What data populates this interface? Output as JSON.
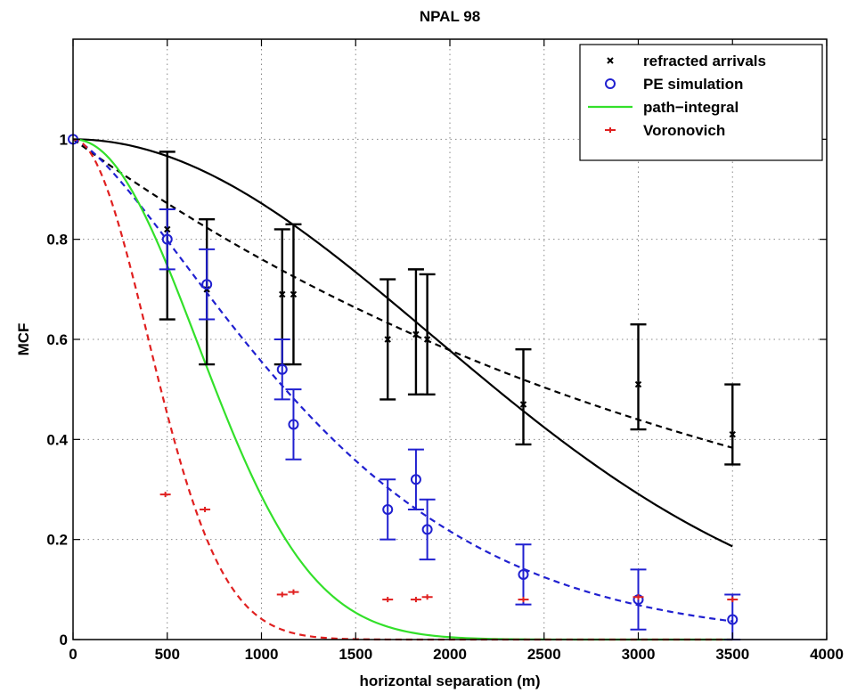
{
  "chart_data": {
    "type": "scatter",
    "title": "NPAL 98",
    "xlabel": "horizontal separation (m)",
    "ylabel": "MCF",
    "xlim": [
      0,
      4000
    ],
    "ylim": [
      0,
      1.2
    ],
    "xticks": [
      0,
      500,
      1000,
      1500,
      2000,
      2500,
      3000,
      3500,
      4000
    ],
    "yticks": [
      0,
      0.2,
      0.4,
      0.6,
      0.8,
      1
    ],
    "xtick_labels": [
      "0",
      "500",
      "1000",
      "1500",
      "2000",
      "2500",
      "3000",
      "3500",
      "4000"
    ],
    "ytick_labels": [
      "0",
      "0.2",
      "0.4",
      "0.6",
      "0.8",
      "1"
    ],
    "grid": true,
    "legend_position": "top-right",
    "legend": [
      {
        "label": "refracted arrivals",
        "marker": "x",
        "color": "#000000"
      },
      {
        "label": "PE simulation",
        "marker": "o",
        "color": "#2020d0"
      },
      {
        "label": "path−integral",
        "marker": "line",
        "color": "#33e02a"
      },
      {
        "label": "Voronovich",
        "marker": "+",
        "color": "#e02020"
      }
    ],
    "series": [
      {
        "name": "refracted arrivals",
        "marker": "x",
        "color": "#000000",
        "x": [
          500,
          710,
          1110,
          1170,
          1670,
          1820,
          1880,
          2390,
          3000,
          3500
        ],
        "y": [
          0.82,
          0.7,
          0.69,
          0.69,
          0.6,
          0.61,
          0.6,
          0.47,
          0.51,
          0.41
        ],
        "err_low": [
          0.64,
          0.55,
          0.55,
          0.55,
          0.48,
          0.49,
          0.49,
          0.39,
          0.42,
          0.35
        ],
        "err_high": [
          0.975,
          0.84,
          0.82,
          0.83,
          0.72,
          0.74,
          0.73,
          0.58,
          0.63,
          0.51
        ]
      },
      {
        "name": "PE simulation",
        "marker": "o",
        "color": "#2020d0",
        "x": [
          0,
          500,
          710,
          1110,
          1170,
          1670,
          1820,
          1880,
          2390,
          3000,
          3500
        ],
        "y": [
          1.0,
          0.8,
          0.71,
          0.54,
          0.43,
          0.26,
          0.32,
          0.22,
          0.13,
          0.08,
          0.04
        ],
        "err_low": [
          1.0,
          0.74,
          0.64,
          0.48,
          0.36,
          0.2,
          0.26,
          0.16,
          0.07,
          0.02,
          0.0
        ],
        "err_high": [
          1.0,
          0.86,
          0.78,
          0.6,
          0.5,
          0.32,
          0.38,
          0.28,
          0.19,
          0.14,
          0.09
        ]
      },
      {
        "name": "Voronovich",
        "marker": "+",
        "color": "#e02020",
        "x": [
          490,
          700,
          1110,
          1170,
          1670,
          1820,
          1880,
          2390,
          3000,
          3500
        ],
        "y": [
          0.29,
          0.26,
          0.09,
          0.095,
          0.08,
          0.08,
          0.085,
          0.08,
          0.085,
          0.08
        ]
      }
    ],
    "curves": [
      {
        "name": "refracted arrivals fit",
        "style": "solid",
        "color": "#000000",
        "model": "gaussian",
        "x_range": [
          0,
          3500
        ],
        "scale": 2700,
        "exponent": 2
      },
      {
        "name": "refracted arrivals exp",
        "style": "dashed",
        "color": "#000000",
        "model": "stretched_exp",
        "x_range": [
          0,
          3500
        ],
        "scale": 3650,
        "exponent": 1
      },
      {
        "name": "PE simulation fit",
        "style": "dashed",
        "color": "#2020d0",
        "model": "stretched_exp",
        "x_range": [
          0,
          3500
        ],
        "scale": 1470,
        "exponent": 1.38
      },
      {
        "name": "path−integral",
        "style": "solid",
        "color": "#33e02a",
        "model": "stretched_exp",
        "x_range": [
          0,
          3500
        ],
        "scale": 900,
        "exponent": 2.1
      },
      {
        "name": "Voronovich fit",
        "style": "dashed",
        "color": "#e02020",
        "model": "gaussian",
        "x_range": [
          0,
          3500
        ],
        "scale": 560,
        "exponent": 2
      }
    ]
  }
}
